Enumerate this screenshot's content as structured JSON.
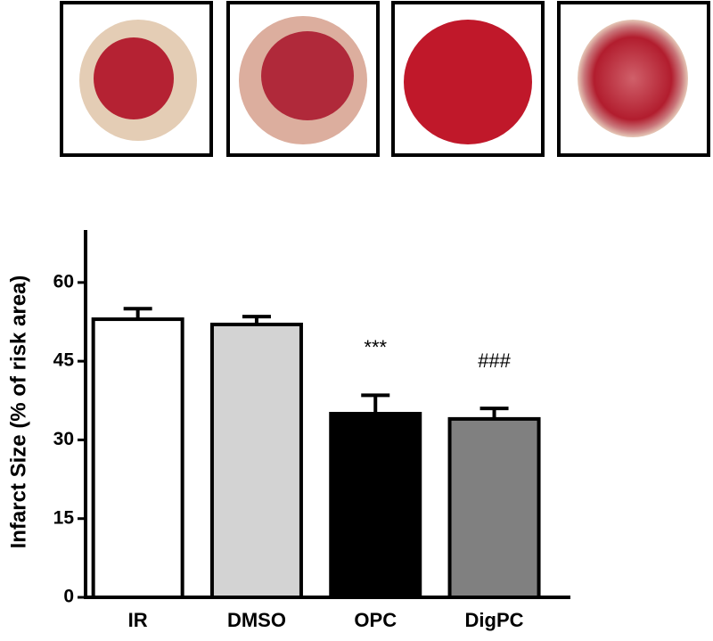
{
  "chart_data": {
    "type": "bar",
    "ylabel": "Infarct Size (% of risk area)",
    "categories": [
      "IR",
      "DMSO",
      "OPC",
      "DigPC"
    ],
    "values": [
      53,
      52,
      35,
      34
    ],
    "errors": [
      2,
      1.5,
      3.5,
      2
    ],
    "colors": [
      "#ffffff",
      "#d3d3d3",
      "#000000",
      "#808080"
    ],
    "ylim": [
      0,
      70
    ],
    "yticks": [
      0,
      15,
      30,
      45,
      60
    ],
    "annotations": [
      {
        "text": "***",
        "category": "OPC"
      },
      {
        "text": "###",
        "category": "DigPC"
      }
    ]
  }
}
